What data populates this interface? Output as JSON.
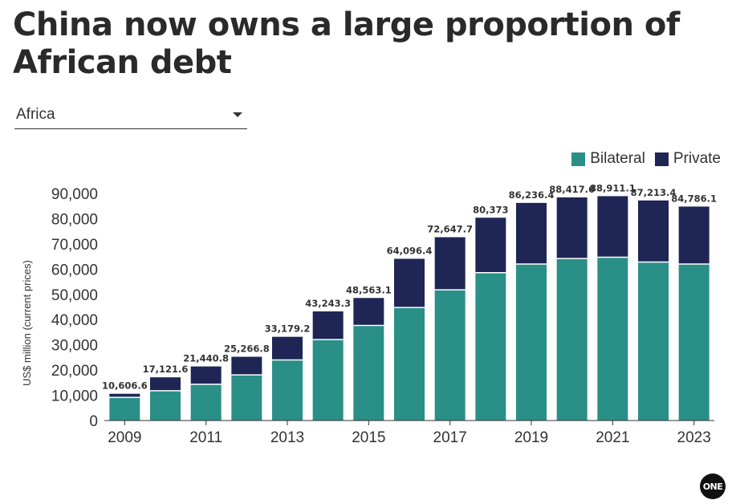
{
  "header": {
    "title": "China now owns a large proportion of African debt"
  },
  "filter": {
    "selected": "Africa",
    "caret_icon": "chevron-down-icon"
  },
  "logo_text": "ONE",
  "chart_data": {
    "type": "bar",
    "stacked": true,
    "categories": [
      "2009",
      "2010",
      "2011",
      "2012",
      "2013",
      "2014",
      "2015",
      "2016",
      "2017",
      "2018",
      "2019",
      "2020",
      "2021",
      "2022",
      "2023"
    ],
    "x_tick_labels": [
      "2009",
      "2011",
      "2013",
      "2015",
      "2017",
      "2019",
      "2021",
      "2023"
    ],
    "series": [
      {
        "name": "Bilateral",
        "color": "#2a8f87",
        "values": [
          9200,
          11800,
          14400,
          18100,
          24000,
          32100,
          37700,
          44800,
          51800,
          58600,
          62000,
          64200,
          64700,
          62800,
          62000
        ]
      },
      {
        "name": "Private",
        "color": "#1f2554",
        "values": [
          1406.6,
          5321.6,
          7040.8,
          7166.8,
          9179.2,
          11143.3,
          10863.1,
          19296.4,
          20847.7,
          21773,
          24236.4,
          24217.6,
          24211.1,
          24413.4,
          22786.1
        ]
      }
    ],
    "total_labels": [
      "10,606.6",
      "17,121.6",
      "21,440.8",
      "25,266.8",
      "33,179.2",
      "43,243.3",
      "48,563.1",
      "64,096.4",
      "72,647.7",
      "80,373",
      "86,236.4",
      "88,417.6",
      "88,911.1",
      "87,213.4",
      "84,786.1"
    ],
    "totals": [
      10606.6,
      17121.6,
      21440.8,
      25266.8,
      33179.2,
      43243.3,
      48563.1,
      64096.4,
      72647.7,
      80373,
      86236.4,
      88417.6,
      88911.1,
      87213.4,
      84786.1
    ],
    "ylabel": "US$ million (current prices)",
    "xlabel": "",
    "ylim": [
      0,
      90000
    ],
    "y_ticks": [
      0,
      10000,
      20000,
      30000,
      40000,
      50000,
      60000,
      70000,
      80000,
      90000
    ],
    "y_tick_labels": [
      "0",
      "10,000",
      "20,000",
      "30,000",
      "40,000",
      "50,000",
      "60,000",
      "70,000",
      "80,000",
      "90,000"
    ],
    "grid": false,
    "legend_position": "top-right"
  }
}
